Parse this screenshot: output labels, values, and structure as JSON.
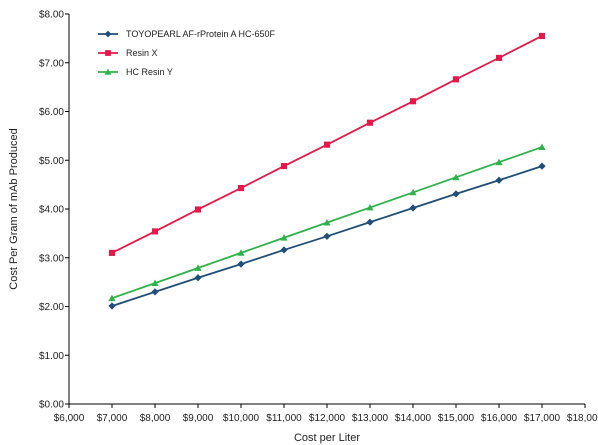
{
  "chart_data": {
    "type": "line",
    "title": "",
    "xlabel": "Cost per Liter",
    "ylabel": "Cost Per Gram of mAb Produced",
    "xlim": [
      6000,
      18000
    ],
    "ylim": [
      0,
      8
    ],
    "x_tick_labels": [
      "$6,000",
      "$7,000",
      "$8,000",
      "$9,000",
      "$10,000",
      "$11,000",
      "$12,000",
      "$13,000",
      "$14,000",
      "$15,000",
      "$16,000",
      "$17,000",
      "$18,000"
    ],
    "y_tick_labels": [
      "$0.00",
      "$1.00",
      "$2.00",
      "$3.00",
      "$4.00",
      "$5.00",
      "$6.00",
      "$7.00",
      "$8.00"
    ],
    "grid": false,
    "legend_position": "top-left",
    "x": [
      7000,
      8000,
      9000,
      10000,
      11000,
      12000,
      13000,
      14000,
      15000,
      16000,
      17000
    ],
    "series": [
      {
        "name": "TOYOPEARL AF-rProtein A HC-650F",
        "color": "#1f4e79",
        "marker": "diamond",
        "values": [
          2.01,
          2.3,
          2.59,
          2.87,
          3.16,
          3.44,
          3.73,
          4.02,
          4.31,
          4.59,
          4.88
        ]
      },
      {
        "name": "Resin X",
        "color": "#e8174a",
        "marker": "square",
        "values": [
          3.1,
          3.54,
          3.99,
          4.43,
          4.88,
          5.32,
          5.77,
          6.21,
          6.66,
          7.1,
          7.55
        ]
      },
      {
        "name": "HC Resin Y",
        "color": "#2db34a",
        "marker": "triangle",
        "values": [
          2.17,
          2.48,
          2.79,
          3.1,
          3.41,
          3.72,
          4.03,
          4.34,
          4.65,
          4.96,
          5.27
        ]
      }
    ]
  }
}
